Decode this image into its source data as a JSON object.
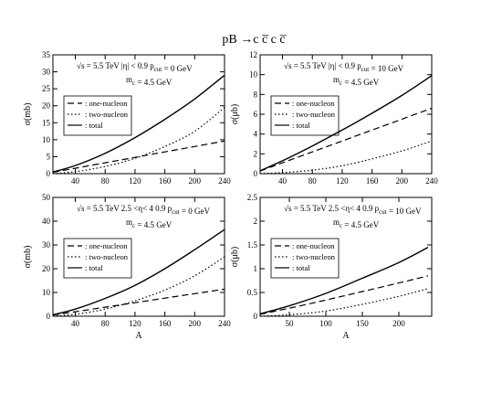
{
  "figure_title": "pB →c c̅ c c̅",
  "chart_data": [
    {
      "type": "line",
      "panel": "top-left",
      "xlabel": "",
      "ylabel": "σ(mb)",
      "xlim": [
        10,
        240
      ],
      "ylim": [
        0,
        35
      ],
      "xticks": [
        40,
        80,
        120,
        160,
        200,
        240
      ],
      "yticks": [
        0,
        5,
        10,
        15,
        20,
        25,
        30,
        35
      ],
      "annotations": [
        "√s = 5.5 TeV  |η| < 0.9   p_cut = 0 GeV",
        "m_c = 4.5 GeV"
      ],
      "legend_position": "top-left",
      "x": [
        10,
        40,
        80,
        120,
        160,
        200,
        240
      ],
      "series": [
        {
          "name": ": one-nucleon",
          "style": "dashed",
          "values": [
            0.4,
            1.6,
            3.2,
            4.8,
            6.4,
            8.0,
            9.6
          ]
        },
        {
          "name": ": two-nucleon",
          "style": "dotted",
          "values": [
            0.02,
            0.6,
            2.1,
            4.5,
            8.0,
            12.5,
            19.5
          ]
        },
        {
          "name": ": total",
          "style": "solid",
          "values": [
            0.5,
            2.4,
            6.0,
            10.6,
            16.0,
            22.0,
            29.0
          ]
        }
      ]
    },
    {
      "type": "line",
      "panel": "top-right",
      "xlabel": "",
      "ylabel": "σ(μb)",
      "xlim": [
        10,
        240
      ],
      "ylim": [
        0,
        12
      ],
      "xticks": [
        40,
        80,
        120,
        160,
        200,
        240
      ],
      "yticks": [
        0,
        2,
        4,
        6,
        8,
        10,
        12
      ],
      "annotations": [
        "√s = 5.5 TeV  |η| < 0.9   p_cut = 10 GeV",
        "m_c = 4.5 GeV"
      ],
      "legend_position": "top-left",
      "x": [
        10,
        40,
        80,
        120,
        160,
        200,
        240
      ],
      "series": [
        {
          "name": ": one-nucleon",
          "style": "dashed",
          "values": [
            0.27,
            1.1,
            2.2,
            3.3,
            4.4,
            5.5,
            6.6
          ]
        },
        {
          "name": ": two-nucleon",
          "style": "dotted",
          "values": [
            0.0,
            0.1,
            0.35,
            0.8,
            1.5,
            2.3,
            3.3
          ]
        },
        {
          "name": ": total",
          "style": "solid",
          "values": [
            0.3,
            1.3,
            2.8,
            4.4,
            6.1,
            7.9,
            9.9
          ]
        }
      ]
    },
    {
      "type": "line",
      "panel": "bottom-left",
      "xlabel": "A",
      "ylabel": "σ(mb)",
      "xlim": [
        10,
        240
      ],
      "ylim": [
        0,
        50
      ],
      "xticks": [
        40,
        80,
        120,
        160,
        200,
        240
      ],
      "yticks": [
        0,
        10,
        20,
        30,
        40,
        50
      ],
      "annotations": [
        "√s = 5.5 TeV  2.5 <η< 4 0.9   p_cut = 0 GeV",
        "m_c = 4.5 GeV"
      ],
      "legend_position": "top-left",
      "x": [
        10,
        40,
        80,
        120,
        160,
        200,
        240
      ],
      "series": [
        {
          "name": ": one-nucleon",
          "style": "dashed",
          "values": [
            0.5,
            1.9,
            3.8,
            5.7,
            7.6,
            9.5,
            11.4
          ]
        },
        {
          "name": ": two-nucleon",
          "style": "dotted",
          "values": [
            0.05,
            0.8,
            3.0,
            6.5,
            11.0,
            17.0,
            25.0
          ]
        },
        {
          "name": ": total",
          "style": "solid",
          "values": [
            0.6,
            3.0,
            7.5,
            13.0,
            20.0,
            28.0,
            36.5
          ]
        }
      ]
    },
    {
      "type": "line",
      "panel": "bottom-right",
      "xlabel": "A",
      "ylabel": "σ(μb)",
      "xlim": [
        10,
        245
      ],
      "ylim": [
        0,
        2.5
      ],
      "xticks": [
        50,
        100,
        150,
        200
      ],
      "yticks": [
        0,
        0.5,
        1,
        1.5,
        2,
        2.5
      ],
      "annotations": [
        "√s = 5.5 TeV  2.5 <η< 4 0.9   p_cut = 10 GeV",
        "m_c = 4.5 GeV"
      ],
      "legend_position": "top-left",
      "x": [
        10,
        50,
        100,
        150,
        200,
        240
      ],
      "series": [
        {
          "name": ": one-nucleon",
          "style": "dashed",
          "values": [
            0.04,
            0.17,
            0.34,
            0.52,
            0.7,
            0.85
          ]
        },
        {
          "name": ": two-nucleon",
          "style": "dotted",
          "values": [
            0.0,
            0.03,
            0.11,
            0.25,
            0.42,
            0.58
          ]
        },
        {
          "name": ": total",
          "style": "solid",
          "values": [
            0.05,
            0.22,
            0.48,
            0.8,
            1.13,
            1.45
          ]
        }
      ]
    }
  ]
}
